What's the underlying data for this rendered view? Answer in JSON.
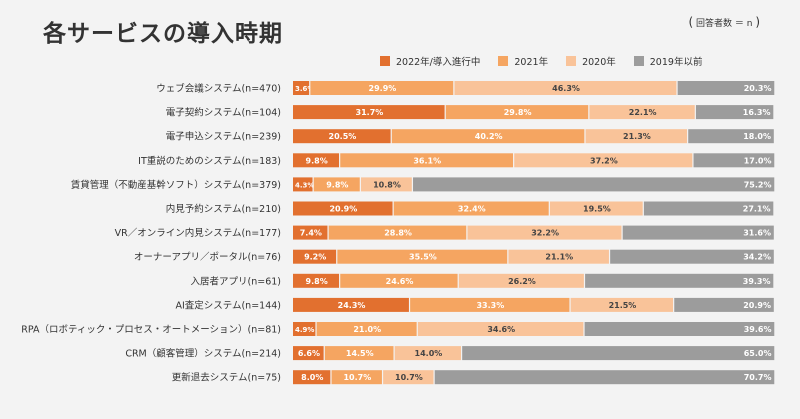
{
  "title": "各サービスの導入時期",
  "note": "回答者数 ＝ n",
  "colors": {
    "c2022": "#e2702f",
    "c2021": "#f5a561",
    "c2020": "#f9c399",
    "c2019": "#9c9c9c"
  },
  "legend": [
    {
      "label": "2022年/導入進行中",
      "color": "#e2702f"
    },
    {
      "label": "2021年",
      "color": "#f5a561"
    },
    {
      "label": "2020年",
      "color": "#f9c399"
    },
    {
      "label": "2019年以前",
      "color": "#9c9c9c"
    }
  ],
  "chart_data": {
    "type": "bar",
    "stacked": true,
    "orientation": "horizontal",
    "title": "各サービスの導入時期",
    "categories": [
      "ウェブ会議システム(n=470)",
      "電子契約システム(n=104)",
      "電子申込システム(n=239)",
      "IT重説のためのシステム(n=183)",
      "賃貸管理（不動産基幹ソフト）システム(n=379)",
      "内見予約システム(n=210)",
      "VR／オンライン内見システム(n=177)",
      "オーナーアプリ／ポータル(n=76)",
      "入居者アプリ(n=61)",
      "AI査定システム(n=144)",
      "RPA（ロボティック・プロセス・オートメーション）(n=81)",
      "CRM（顧客管理）システム(n=214)",
      "更新退去システム(n=75)"
    ],
    "series": [
      {
        "name": "2022年/導入進行中",
        "values": [
          3.6,
          31.7,
          20.5,
          9.8,
          4.3,
          20.9,
          7.4,
          9.2,
          9.8,
          24.3,
          4.9,
          6.6,
          8.0
        ]
      },
      {
        "name": "2021年",
        "values": [
          29.9,
          29.8,
          40.2,
          36.1,
          9.8,
          32.4,
          28.8,
          35.5,
          24.6,
          33.3,
          21.0,
          14.5,
          10.7
        ]
      },
      {
        "name": "2020年",
        "values": [
          46.3,
          22.1,
          21.3,
          37.2,
          10.8,
          19.5,
          32.2,
          21.1,
          26.2,
          21.5,
          34.6,
          14.0,
          10.7
        ]
      },
      {
        "name": "2019年以前",
        "values": [
          20.3,
          16.3,
          18.0,
          17.0,
          75.2,
          27.1,
          31.6,
          34.2,
          39.3,
          20.9,
          39.6,
          65.0,
          70.7
        ]
      }
    ],
    "value_labels": [
      [
        "3.6%",
        "29.9%",
        "46.3%",
        "20.3%"
      ],
      [
        "31.7%",
        "29.8%",
        "22.1%",
        "16.3%"
      ],
      [
        "20.5%",
        "40.2%",
        "21.3%",
        "18.0%"
      ],
      [
        "9.8%",
        "36.1%",
        "37.2%",
        "17.0%"
      ],
      [
        "4.3%",
        "9.8%",
        "10.8%",
        "75.2%"
      ],
      [
        "20.9%",
        "32.4%",
        "19.5%",
        "27.1%"
      ],
      [
        "7.4%",
        "28.8%",
        "32.2%",
        "31.6%"
      ],
      [
        "9.2%",
        "35.5%",
        "21.1%",
        "34.2%"
      ],
      [
        "9.8%",
        "24.6%",
        "26.2%",
        "39.3%"
      ],
      [
        "24.3%",
        "33.3%",
        "21.5%",
        "20.9%"
      ],
      [
        "4.9%",
        "21.0%",
        "34.6%",
        "39.6%"
      ],
      [
        "6.6%",
        "14.5%",
        "14.0%",
        "65.0%"
      ],
      [
        "8.0%",
        "10.7%",
        "10.7%",
        "70.7%"
      ]
    ],
    "xlim": [
      0,
      100
    ],
    "legend_position": "top-right",
    "grid": false
  }
}
